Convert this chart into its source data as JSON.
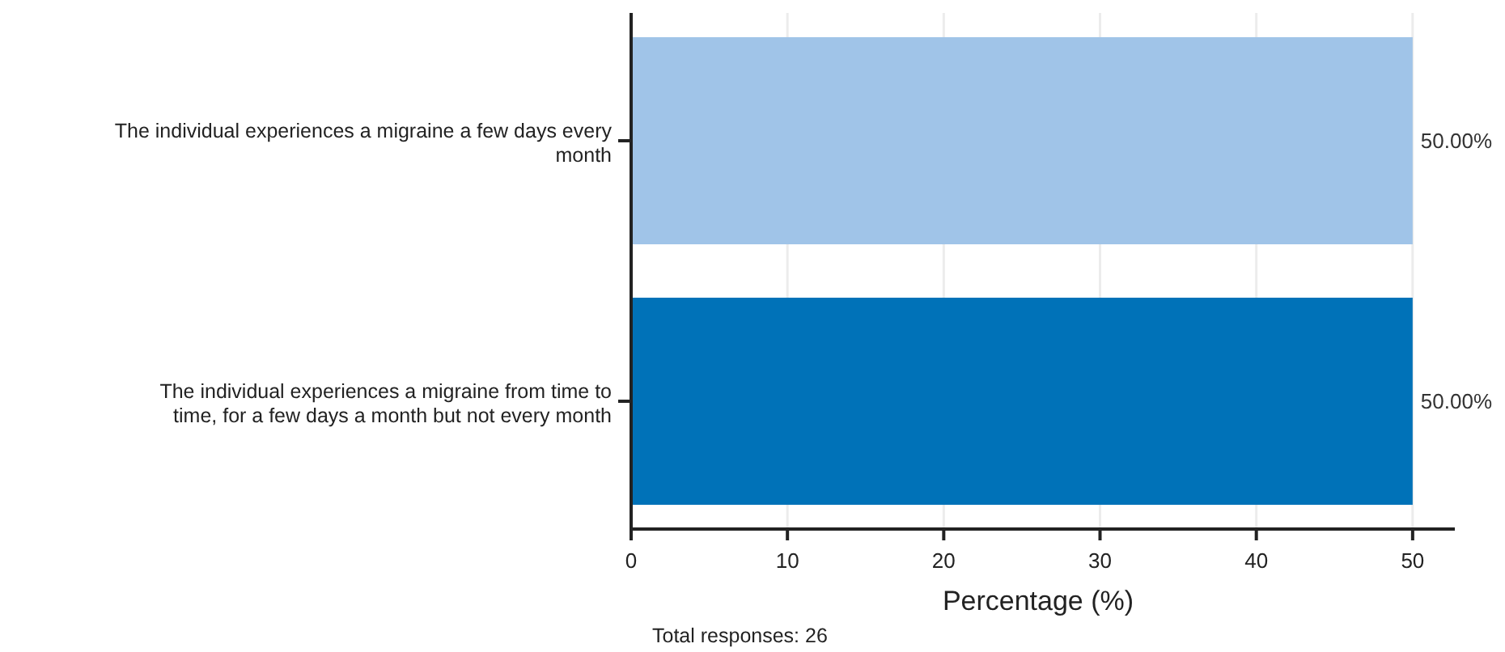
{
  "chart_data": {
    "type": "bar",
    "orientation": "horizontal",
    "categories": [
      "The individual experiences a migraine a few days every month",
      "The individual experiences a migraine from time to time, for a few days a month but not every month"
    ],
    "values": [
      50,
      50
    ],
    "colors": [
      "#a0c4e8",
      "#0072b8"
    ],
    "value_labels": [
      "50.00%",
      "50.00%"
    ],
    "xlim": [
      0,
      52.7
    ],
    "xticks": [
      0,
      10,
      20,
      30,
      40,
      50
    ],
    "xlabel": "Percentage (%)",
    "grid": "x",
    "annotations": [
      "Total responses: 26"
    ]
  }
}
